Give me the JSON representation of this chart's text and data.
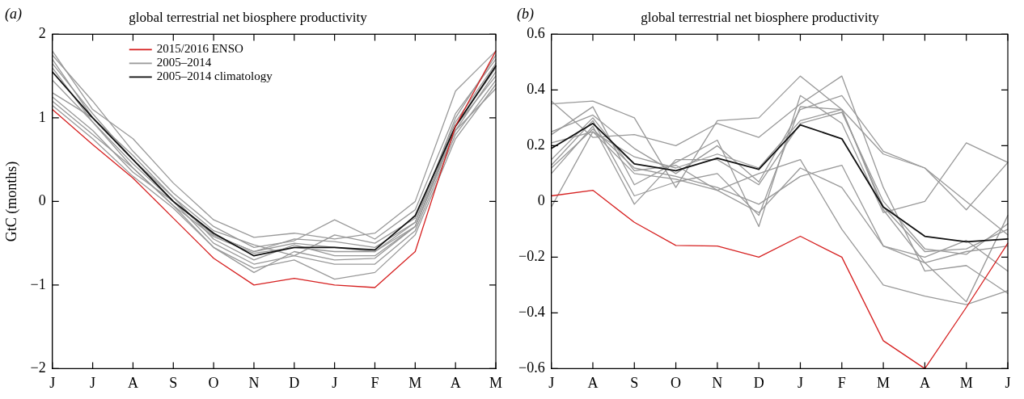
{
  "chart_data": [
    {
      "type": "line",
      "title": "global terrestrial net biosphere productivity",
      "ylabel": "GtC (months)",
      "annotations": [
        "(a)"
      ],
      "categories": [
        "J",
        "J",
        "A",
        "S",
        "O",
        "N",
        "D",
        "J",
        "F",
        "M",
        "A",
        "M"
      ],
      "ylim": [
        -2,
        2
      ],
      "yticks": [
        {
          "value": -2,
          "label": "−2"
        },
        {
          "value": -1,
          "label": "−1"
        },
        0,
        1,
        2
      ],
      "grid": false,
      "legend": "top left",
      "marker": "none",
      "line_style": "solid",
      "series": [
        {
          "name": "2015/2016 ENSO",
          "color": "#d62020",
          "values": [
            1.1,
            0.68,
            0.28,
            -0.2,
            -0.68,
            -1.0,
            -0.92,
            -1.0,
            -1.03,
            -0.6,
            0.9,
            1.8
          ]
        },
        {
          "name": "2005–2014",
          "color": "#999999",
          "values": [
            1.8,
            1.1,
            0.75,
            0.22,
            -0.22,
            -0.43,
            -0.38,
            -0.45,
            -0.38,
            0.0,
            1.32,
            1.8
          ]
        },
        {
          "color": "#999999",
          "values": [
            1.75,
            1.2,
            0.6,
            0.1,
            -0.3,
            -0.55,
            -0.47,
            -0.22,
            -0.45,
            -0.1,
            1.05,
            1.7
          ]
        },
        {
          "color": "#999999",
          "values": [
            1.7,
            1.0,
            0.55,
            0.05,
            -0.35,
            -0.52,
            -0.65,
            -0.4,
            -0.5,
            -0.2,
            0.95,
            1.65
          ]
        },
        {
          "color": "#999999",
          "values": [
            1.6,
            0.95,
            0.45,
            0.0,
            -0.4,
            -0.6,
            -0.45,
            -0.48,
            -0.55,
            -0.25,
            0.9,
            1.6
          ]
        },
        {
          "color": "#999999",
          "values": [
            1.45,
            0.95,
            0.4,
            -0.05,
            -0.42,
            -0.62,
            -0.55,
            -0.6,
            -0.6,
            -0.3,
            0.85,
            1.55
          ]
        },
        {
          "color": "#999999",
          "values": [
            1.3,
            1.0,
            0.5,
            0.05,
            -0.45,
            -0.7,
            -0.52,
            -0.65,
            -0.65,
            -0.3,
            0.9,
            1.5
          ]
        },
        {
          "color": "#999999",
          "values": [
            1.25,
            0.85,
            0.35,
            0.0,
            -0.5,
            -0.75,
            -0.65,
            -0.75,
            -0.75,
            -0.35,
            0.8,
            1.45
          ]
        },
        {
          "color": "#999999",
          "values": [
            1.2,
            0.8,
            0.4,
            -0.05,
            -0.55,
            -0.8,
            -0.7,
            -0.93,
            -0.85,
            -0.4,
            0.75,
            1.4
          ]
        },
        {
          "color": "#999999",
          "values": [
            1.15,
            0.75,
            0.3,
            -0.08,
            -0.55,
            -0.85,
            -0.6,
            -0.7,
            -0.68,
            -0.3,
            0.85,
            1.35
          ]
        },
        {
          "color": "#999999",
          "values": [
            1.65,
            1.05,
            0.5,
            0.0,
            -0.4,
            -0.6,
            -0.5,
            -0.55,
            -0.6,
            -0.25,
            1.0,
            1.75
          ]
        },
        {
          "name": "2005–2014 climatology",
          "color": "#111111",
          "values": [
            1.55,
            1.0,
            0.5,
            0.0,
            -0.38,
            -0.65,
            -0.55,
            -0.55,
            -0.58,
            -0.17,
            0.9,
            1.62
          ]
        }
      ]
    },
    {
      "type": "line",
      "title": "global terrestrial net biosphere productivity",
      "annotations": [
        "(b)"
      ],
      "categories": [
        "J",
        "A",
        "S",
        "O",
        "N",
        "D",
        "J",
        "F",
        "M",
        "A",
        "M",
        "J"
      ],
      "ylim": [
        -0.6,
        0.6
      ],
      "yticks": [
        {
          "value": -0.6,
          "label": "−0.6"
        },
        {
          "value": -0.4,
          "label": "−0.4"
        },
        {
          "value": -0.2,
          "label": "−0.2"
        },
        0,
        0.2,
        0.4,
        0.6
      ],
      "grid": false,
      "marker": "none",
      "line_style": "solid",
      "series": [
        {
          "color": "#d62020",
          "values": [
            0.02,
            0.04,
            -0.075,
            -0.158,
            -0.16,
            -0.2,
            -0.125,
            -0.2,
            -0.5,
            -0.6,
            -0.38,
            -0.15
          ]
        },
        {
          "color": "#999999",
          "values": [
            0.35,
            0.36,
            0.3,
            0.05,
            0.29,
            0.3,
            0.45,
            0.33,
            0.17,
            0.12,
            -0.03,
            0.14
          ]
        },
        {
          "color": "#999999",
          "values": [
            0.36,
            0.23,
            0.24,
            0.2,
            0.28,
            0.23,
            0.35,
            0.45,
            0.05,
            -0.25,
            -0.23,
            -0.33
          ]
        },
        {
          "color": "#999999",
          "values": [
            0.25,
            0.31,
            0.19,
            0.1,
            0.2,
            0.07,
            0.33,
            0.38,
            0.18,
            0.12,
            0.0,
            -0.12
          ]
        },
        {
          "color": "#999999",
          "values": [
            0.24,
            0.34,
            0.06,
            0.14,
            0.22,
            -0.09,
            0.38,
            0.28,
            -0.04,
            0.0,
            0.21,
            0.14
          ]
        },
        {
          "color": "#999999",
          "values": [
            0.1,
            0.27,
            -0.01,
            0.15,
            0.15,
            0.06,
            0.28,
            0.32,
            0.0,
            -0.17,
            -0.19,
            -0.08
          ]
        },
        {
          "color": "#999999",
          "values": [
            0.13,
            0.29,
            0.02,
            0.07,
            0.1,
            -0.05,
            0.34,
            0.33,
            -0.03,
            -0.22,
            -0.18,
            -0.16
          ]
        },
        {
          "color": "#999999",
          "values": [
            0.12,
            0.26,
            0.12,
            0.09,
            0.05,
            -0.01,
            0.09,
            0.13,
            -0.16,
            -0.2,
            -0.14,
            -0.25
          ]
        },
        {
          "color": "#999999",
          "values": [
            0.15,
            0.3,
            0.11,
            0.13,
            0.04,
            0.1,
            0.15,
            -0.1,
            -0.3,
            -0.34,
            -0.37,
            -0.32
          ]
        },
        {
          "color": "#999999",
          "values": [
            -0.02,
            0.25,
            0.1,
            0.08,
            0.04,
            -0.04,
            0.12,
            0.05,
            -0.16,
            -0.22,
            -0.36,
            -0.05
          ]
        },
        {
          "color": "#999999",
          "values": [
            0.21,
            0.25,
            0.16,
            0.12,
            0.17,
            0.12,
            0.29,
            0.33,
            -0.02,
            -0.18,
            -0.17,
            -0.1
          ]
        },
        {
          "color": "#111111",
          "values": [
            0.19,
            0.28,
            0.135,
            0.11,
            0.155,
            0.115,
            0.275,
            0.225,
            -0.02,
            -0.125,
            -0.145,
            -0.135
          ]
        }
      ]
    }
  ]
}
